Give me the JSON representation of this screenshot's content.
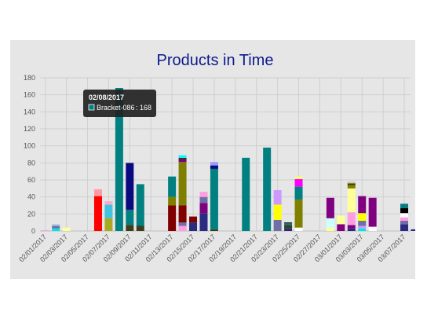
{
  "chart_data": {
    "type": "bar",
    "stacked": true,
    "title": "Products in Time",
    "ylim": [
      0,
      180
    ],
    "yticks": [
      0,
      20,
      40,
      60,
      80,
      100,
      120,
      140,
      160,
      180
    ],
    "grid": true,
    "x_tick_labels": [
      "02/01/2017",
      "02/03/2017",
      "02/05/2017",
      "02/07/2017",
      "02/09/2017",
      "02/11/2017",
      "02/13/2017",
      "02/15/2017",
      "02/17/2017",
      "02/19/2017",
      "02/21/2017",
      "02/23/2017",
      "02/25/2017",
      "02/27/2017",
      "03/01/2017",
      "03/03/2017",
      "03/05/2017",
      "03/07/2017"
    ],
    "bars": [
      {
        "slot": 0,
        "segments": [
          {
            "value": 1,
            "color": "#ff9de0"
          }
        ]
      },
      {
        "slot": 1,
        "segments": [
          {
            "value": 3,
            "color": "#00e5e5"
          },
          {
            "value": 3,
            "color": "#6f6fa8"
          },
          {
            "value": 2,
            "color": "#b0c4de"
          }
        ]
      },
      {
        "slot": 2,
        "segments": [
          {
            "value": 4,
            "color": "#ffff99"
          }
        ]
      },
      {
        "slot": 5,
        "segments": [
          {
            "value": 41,
            "color": "#ff0000"
          },
          {
            "value": 8,
            "color": "#ff9aa2"
          }
        ]
      },
      {
        "slot": 6,
        "segments": [
          {
            "value": 15,
            "color": "#aaaa22"
          },
          {
            "value": 16,
            "color": "#40c4e0"
          },
          {
            "value": 4,
            "color": "#ffaacc"
          }
        ]
      },
      {
        "slot": 7,
        "segments": [
          {
            "value": 168,
            "color": "#008080"
          }
        ]
      },
      {
        "slot": 8,
        "segments": [
          {
            "value": 7,
            "color": "#3d3d1a"
          },
          {
            "value": 18,
            "color": "#008080"
          },
          {
            "value": 55,
            "color": "#0a0a80"
          }
        ]
      },
      {
        "slot": 9,
        "segments": [
          {
            "value": 6,
            "color": "#3d3d1a"
          },
          {
            "value": 49,
            "color": "#008080"
          }
        ]
      },
      {
        "slot": 12,
        "segments": [
          {
            "value": 30,
            "color": "#800000"
          },
          {
            "value": 10,
            "color": "#808000"
          },
          {
            "value": 24,
            "color": "#008080"
          }
        ]
      },
      {
        "slot": 13,
        "segments": [
          {
            "value": 6,
            "color": "#ff9de0"
          },
          {
            "value": 4,
            "color": "#6f6fa8"
          },
          {
            "value": 20,
            "color": "#800000"
          },
          {
            "value": 51,
            "color": "#808000"
          },
          {
            "value": 3,
            "color": "#800080"
          },
          {
            "value": 2,
            "color": "#4a2a2a"
          },
          {
            "value": 3,
            "color": "#00ffff"
          }
        ]
      },
      {
        "slot": 14,
        "segments": [
          {
            "value": 10,
            "color": "#2a2a80"
          },
          {
            "value": 7,
            "color": "#800000"
          }
        ]
      },
      {
        "slot": 15,
        "segments": [
          {
            "value": 21,
            "color": "#2a2a80"
          },
          {
            "value": 12,
            "color": "#800080"
          },
          {
            "value": 7,
            "color": "#6f6fa8"
          },
          {
            "value": 6,
            "color": "#ff9de0"
          }
        ]
      },
      {
        "slot": 16,
        "segments": [
          {
            "value": 2,
            "color": "#3d3d1a"
          },
          {
            "value": 71,
            "color": "#008080"
          },
          {
            "value": 4,
            "color": "#0a0a80"
          },
          {
            "value": 4,
            "color": "#9999ff"
          }
        ]
      },
      {
        "slot": 19,
        "segments": [
          {
            "value": 86,
            "color": "#008080"
          }
        ]
      },
      {
        "slot": 21,
        "segments": [
          {
            "value": 98,
            "color": "#008080"
          }
        ]
      },
      {
        "slot": 22,
        "segments": [
          {
            "value": 13,
            "color": "#6f6fa8"
          },
          {
            "value": 18,
            "color": "#ffff00"
          },
          {
            "value": 17,
            "color": "#cc99ff"
          }
        ]
      },
      {
        "slot": 23,
        "segments": [
          {
            "value": 3,
            "color": "#2a2a80"
          },
          {
            "value": 4,
            "color": "#3d3d1a"
          },
          {
            "value": 2,
            "color": "#008080"
          },
          {
            "value": 1,
            "color": "#000000"
          }
        ]
      },
      {
        "slot": 24,
        "segments": [
          {
            "value": 4,
            "color": "#ffffff"
          },
          {
            "value": 33,
            "color": "#808000"
          },
          {
            "value": 15,
            "color": "#008080"
          },
          {
            "value": 9,
            "color": "#ff00ff"
          },
          {
            "value": 3,
            "color": "#ffff66"
          }
        ]
      },
      {
        "slot": 27,
        "segments": [
          {
            "value": 4,
            "color": "#ffff99"
          },
          {
            "value": 11,
            "color": "#ccffff"
          },
          {
            "value": 24,
            "color": "#800080"
          }
        ]
      },
      {
        "slot": 28,
        "segments": [
          {
            "value": 8,
            "color": "#800080"
          },
          {
            "value": 10,
            "color": "#ffff99"
          }
        ]
      },
      {
        "slot": 29,
        "segments": [
          {
            "value": 3,
            "color": "#2a2a80"
          },
          {
            "value": 4,
            "color": "#800080"
          },
          {
            "value": 15,
            "color": "#ff9de0"
          },
          {
            "value": 28,
            "color": "#ffff99"
          },
          {
            "value": 4,
            "color": "#808000"
          },
          {
            "value": 2,
            "color": "#3d3d1a"
          },
          {
            "value": 2,
            "color": "#cccc99"
          }
        ]
      },
      {
        "slot": 30,
        "segments": [
          {
            "value": 3,
            "color": "#00e5e5"
          },
          {
            "value": 3,
            "color": "#cc99ff"
          },
          {
            "value": 6,
            "color": "#6f6fa8"
          },
          {
            "value": 9,
            "color": "#ffff00"
          },
          {
            "value": 20,
            "color": "#800080"
          }
        ]
      },
      {
        "slot": 31,
        "segments": [
          {
            "value": 5,
            "color": "#ffffff"
          },
          {
            "value": 34,
            "color": "#800080"
          }
        ]
      },
      {
        "slot": 34,
        "segments": [
          {
            "value": 8,
            "color": "#2a2a80"
          },
          {
            "value": 4,
            "color": "#6f6fa8"
          },
          {
            "value": 4,
            "color": "#ff9de0"
          },
          {
            "value": 5,
            "color": "#ffffff"
          },
          {
            "value": 6,
            "color": "#000000"
          },
          {
            "value": 5,
            "color": "#008080"
          }
        ]
      },
      {
        "slot": 35,
        "segments": [
          {
            "value": 2,
            "color": "#2a2a80"
          }
        ]
      }
    ],
    "tooltip": {
      "title": "02/08/2017",
      "series": "Bracket-086",
      "value": "168",
      "color": "#008080"
    }
  }
}
